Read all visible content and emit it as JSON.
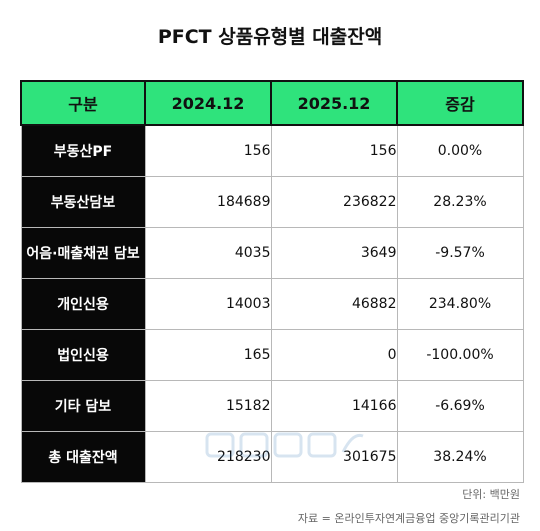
{
  "title": "PFCT 상품유형별 대출잔액",
  "chart_data": {
    "type": "table",
    "title": "PFCT 상품유형별 대출잔액",
    "columns": [
      "구분",
      "2024.12",
      "2025.12",
      "증감"
    ],
    "rows": [
      {
        "category": "부동산PF",
        "y2024": "156",
        "y2025": "156",
        "change": "0.00%"
      },
      {
        "category": "부동산담보",
        "y2024": "184689",
        "y2025": "236822",
        "change": "28.23%"
      },
      {
        "category": "어음·매출채권 담보",
        "y2024": "4035",
        "y2025": "3649",
        "change": "-9.57%"
      },
      {
        "category": "개인신용",
        "y2024": "14003",
        "y2025": "46882",
        "change": "234.80%"
      },
      {
        "category": "법인신용",
        "y2024": "165",
        "y2025": "0",
        "change": "-100.00%"
      },
      {
        "category": "기타 담보",
        "y2024": "15182",
        "y2025": "14166",
        "change": "-6.69%"
      },
      {
        "category": "총 대출잔액",
        "y2024": "218230",
        "y2025": "301675",
        "change": "38.24%"
      }
    ]
  },
  "unit": "단위: 백만원",
  "source": "자료 = 온라인투자연계금융업 중앙기록관리기관",
  "colors": {
    "header_bg": "#2fe37c",
    "category_bg": "#080808"
  },
  "watermark_icon": "newspaper-logo-icon"
}
